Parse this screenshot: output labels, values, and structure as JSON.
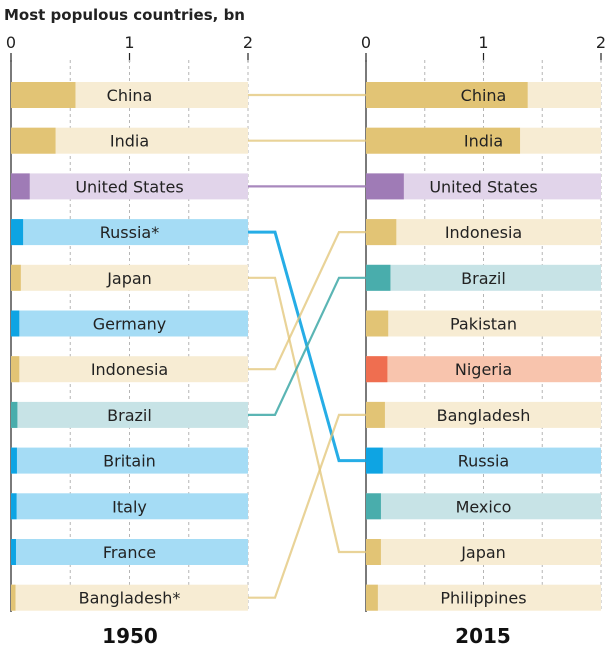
{
  "colors": {
    "default_fill": "#e2c475",
    "default_track": "#f7ecd3",
    "europe_fill": "#0ea4e3",
    "europe_track": "#a5dcf5",
    "us_fill": "#9f7bb6",
    "us_track": "#e1d4ea",
    "latam_fill": "#49adac",
    "latam_track": "#c7e3e6",
    "africa_fill": "#ef6e50",
    "africa_track": "#f8c4ad",
    "grid": "#b5b5b5",
    "axis": "#222222"
  },
  "chart_data": {
    "type": "bar",
    "title": "Most populous countries, bn",
    "xlim": [
      0,
      2
    ],
    "ticks": [
      "0",
      "1",
      "2"
    ],
    "footnote_marker": "*",
    "panels": [
      {
        "year": "1950",
        "bars": [
          {
            "country": "China",
            "value": 0.544,
            "group": "default"
          },
          {
            "country": "India",
            "value": 0.376,
            "group": "default"
          },
          {
            "country": "United States",
            "value": 0.158,
            "group": "us"
          },
          {
            "country": "Russia*",
            "value": 0.102,
            "group": "europe"
          },
          {
            "country": "Japan",
            "value": 0.083,
            "group": "default"
          },
          {
            "country": "Germany",
            "value": 0.07,
            "group": "europe"
          },
          {
            "country": "Indonesia",
            "value": 0.07,
            "group": "default"
          },
          {
            "country": "Brazil",
            "value": 0.054,
            "group": "latam"
          },
          {
            "country": "Britain",
            "value": 0.05,
            "group": "europe"
          },
          {
            "country": "Italy",
            "value": 0.047,
            "group": "europe"
          },
          {
            "country": "France",
            "value": 0.042,
            "group": "europe"
          },
          {
            "country": "Bangladesh*",
            "value": 0.038,
            "group": "default"
          }
        ]
      },
      {
        "year": "2015",
        "bars": [
          {
            "country": "China",
            "value": 1.376,
            "group": "default"
          },
          {
            "country": "India",
            "value": 1.311,
            "group": "default"
          },
          {
            "country": "United States",
            "value": 0.322,
            "group": "us"
          },
          {
            "country": "Indonesia",
            "value": 0.258,
            "group": "default"
          },
          {
            "country": "Brazil",
            "value": 0.208,
            "group": "latam"
          },
          {
            "country": "Pakistan",
            "value": 0.189,
            "group": "default"
          },
          {
            "country": "Nigeria",
            "value": 0.182,
            "group": "africa"
          },
          {
            "country": "Bangladesh",
            "value": 0.161,
            "group": "default"
          },
          {
            "country": "Russia",
            "value": 0.143,
            "group": "europe"
          },
          {
            "country": "Mexico",
            "value": 0.127,
            "group": "latam"
          },
          {
            "country": "Japan",
            "value": 0.127,
            "group": "default"
          },
          {
            "country": "Philippines",
            "value": 0.101,
            "group": "default"
          }
        ]
      }
    ],
    "connections": [
      {
        "from": "China",
        "to": "China",
        "group": "default"
      },
      {
        "from": "India",
        "to": "India",
        "group": "default"
      },
      {
        "from": "United States",
        "to": "United States",
        "group": "us"
      },
      {
        "from": "Russia*",
        "to": "Russia",
        "group": "europe"
      },
      {
        "from": "Japan",
        "to": "Japan",
        "group": "default"
      },
      {
        "from": "Indonesia",
        "to": "Indonesia",
        "group": "default"
      },
      {
        "from": "Brazil",
        "to": "Brazil",
        "group": "latam"
      },
      {
        "from": "Bangladesh*",
        "to": "Bangladesh",
        "group": "default"
      }
    ]
  }
}
